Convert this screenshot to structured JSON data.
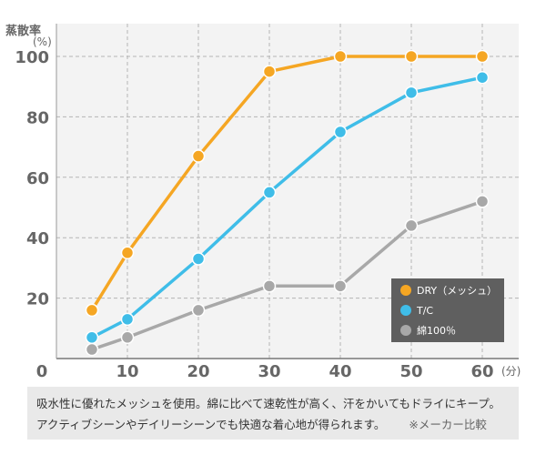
{
  "chart_data": {
    "type": "line",
    "ylabel": "蒸散率",
    "yunit": "(%)",
    "xunit": "(分)",
    "x": [
      5,
      10,
      20,
      30,
      40,
      50,
      60
    ],
    "xticks": [
      "0",
      "10",
      "20",
      "30",
      "40",
      "50",
      "60"
    ],
    "yticks": [
      "20",
      "40",
      "60",
      "80",
      "100"
    ],
    "xlim": [
      0,
      60
    ],
    "ylim": [
      0,
      100
    ],
    "grid": true,
    "legend_position": "bottom-right",
    "series": [
      {
        "name": "DRY（メッシュ）",
        "color": "#f5a623",
        "values": [
          16,
          35,
          67,
          95,
          100,
          100,
          100
        ]
      },
      {
        "name": "T/C",
        "color": "#3fbde8",
        "values": [
          7,
          13,
          33,
          55,
          75,
          88,
          93
        ]
      },
      {
        "name": "綿100％",
        "color": "#a8a8a8",
        "values": [
          3,
          7,
          16,
          24,
          24,
          44,
          52
        ]
      }
    ]
  },
  "note": {
    "line1": "吸水性に優れたメッシュを使用。綿に比べて速乾性が高く、汗をかいてもドライにキープ。",
    "line2": "アクティブシーンやデイリーシーンでも快適な着心地が得られます。",
    "aside": "※メーカー比較"
  }
}
